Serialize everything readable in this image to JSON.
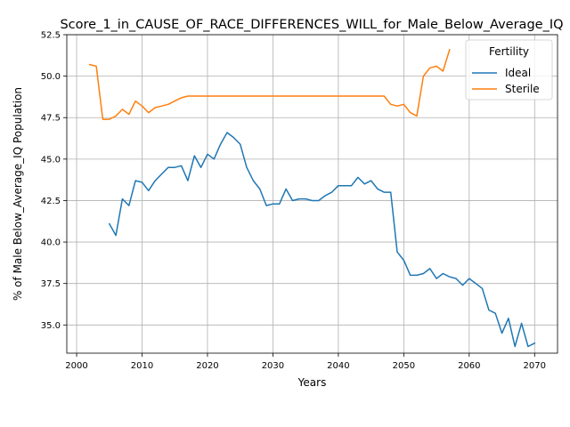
{
  "chart_data": {
    "type": "line",
    "title": "Score_1_in_CAUSE_OF_RACE_DIFFERENCES_WILL_for_Male_Below_Average_IQ",
    "xlabel": "Years",
    "ylabel": "% of Male Below_Average_IQ Population",
    "xlim": [
      1998.5,
      2073.5
    ],
    "ylim": [
      33.3,
      52.5
    ],
    "x_ticks": [
      2000,
      2010,
      2020,
      2030,
      2040,
      2050,
      2060,
      2070
    ],
    "x_tick_labels": [
      "2000",
      "2010",
      "2020",
      "2030",
      "2040",
      "2050",
      "2060",
      "2070"
    ],
    "y_ticks": [
      35.0,
      37.5,
      40.0,
      42.5,
      45.0,
      47.5,
      50.0,
      52.5
    ],
    "y_tick_labels": [
      "35.0",
      "37.5",
      "40.0",
      "42.5",
      "45.0",
      "47.5",
      "50.0",
      "52.5"
    ],
    "grid": true,
    "legend": {
      "title": "Fertility",
      "placement": "top-right"
    },
    "series": [
      {
        "name": "Ideal",
        "color": "#1f77b4",
        "x": [
          2005,
          2006,
          2007,
          2008,
          2009,
          2010,
          2011,
          2012,
          2013,
          2014,
          2015,
          2016,
          2017,
          2018,
          2019,
          2020,
          2021,
          2022,
          2023,
          2024,
          2025,
          2026,
          2027,
          2028,
          2029,
          2030,
          2031,
          2032,
          2033,
          2034,
          2035,
          2036,
          2037,
          2038,
          2039,
          2040,
          2041,
          2042,
          2043,
          2044,
          2045,
          2046,
          2047,
          2048,
          2049,
          2050,
          2051,
          2052,
          2053,
          2054,
          2055,
          2056,
          2057,
          2058,
          2059,
          2060,
          2061,
          2062,
          2063,
          2064,
          2065,
          2066,
          2067,
          2068,
          2069,
          2070
        ],
        "values": [
          41.1,
          40.4,
          42.6,
          42.2,
          43.7,
          43.6,
          43.1,
          43.7,
          44.1,
          44.5,
          44.5,
          44.6,
          43.7,
          45.2,
          44.5,
          45.3,
          45.0,
          45.9,
          46.6,
          46.3,
          45.9,
          44.5,
          43.7,
          43.2,
          42.2,
          42.3,
          42.3,
          43.2,
          42.5,
          42.6,
          42.6,
          42.5,
          42.5,
          42.8,
          43.0,
          43.4,
          43.4,
          43.4,
          43.9,
          43.5,
          43.7,
          43.2,
          43.0,
          43.0,
          39.4,
          38.9,
          38.0,
          38.0,
          38.1,
          38.4,
          37.8,
          38.1,
          37.9,
          37.8,
          37.4,
          37.8,
          37.5,
          37.2,
          35.9,
          35.7,
          34.5,
          35.4,
          33.7,
          35.1,
          33.7,
          33.9
        ]
      },
      {
        "name": "Sterile",
        "color": "#ff7f0e",
        "x": [
          2002,
          2003,
          2004,
          2005,
          2006,
          2007,
          2008,
          2009,
          2010,
          2011,
          2012,
          2013,
          2014,
          2015,
          2016,
          2017,
          2018,
          2019,
          2020,
          2021,
          2022,
          2023,
          2024,
          2025,
          2026,
          2027,
          2028,
          2029,
          2030,
          2031,
          2032,
          2033,
          2034,
          2035,
          2036,
          2037,
          2038,
          2039,
          2040,
          2041,
          2042,
          2043,
          2044,
          2045,
          2046,
          2047,
          2048,
          2049,
          2050,
          2051,
          2052,
          2053,
          2054,
          2055,
          2056,
          2057
        ],
        "values": [
          50.7,
          50.6,
          47.4,
          47.4,
          47.6,
          48.0,
          47.7,
          48.5,
          48.2,
          47.8,
          48.1,
          48.2,
          48.3,
          48.5,
          48.7,
          48.8,
          48.8,
          48.8,
          48.8,
          48.8,
          48.8,
          48.8,
          48.8,
          48.8,
          48.8,
          48.8,
          48.8,
          48.8,
          48.8,
          48.8,
          48.8,
          48.8,
          48.8,
          48.8,
          48.8,
          48.8,
          48.8,
          48.8,
          48.8,
          48.8,
          48.8,
          48.8,
          48.8,
          48.8,
          48.8,
          48.8,
          48.3,
          48.2,
          48.3,
          47.8,
          47.6,
          50.0,
          50.5,
          50.6,
          50.3,
          51.6
        ]
      }
    ]
  }
}
